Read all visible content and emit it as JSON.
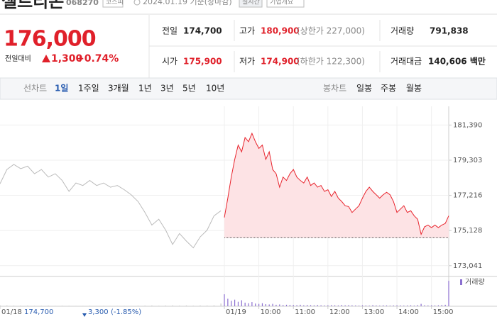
{
  "header": {
    "name": "셀트리온",
    "code": "068270",
    "market": "코스피",
    "date": "2024.01.19 기준(장마감)",
    "realtime": "실시간",
    "company_info": "기업개요"
  },
  "quote": {
    "price": "176,000",
    "change_label": "전일대비",
    "change": "1,300",
    "change_pct": "+0.74%"
  },
  "info": {
    "row1": [
      {
        "label": "전일",
        "value": "174,700"
      },
      {
        "label": "고가",
        "value": "180,900",
        "note": "(상한가 227,000)"
      },
      {
        "label": "거래량",
        "value": "791,838"
      }
    ],
    "row2": [
      {
        "label": "시가",
        "value": "175,900"
      },
      {
        "label": "저가",
        "value": "174,900",
        "note": "(하한가 122,300)"
      },
      {
        "label": "거래대금",
        "value": "140,606 백만"
      }
    ]
  },
  "tabs": {
    "line_label": "선차트",
    "line": [
      "1일",
      "1주일",
      "3개월",
      "1년",
      "3년",
      "5년",
      "10년"
    ],
    "candle_label": "봉차트",
    "candle": [
      "일봉",
      "주봉",
      "월봉"
    ]
  },
  "footer": {
    "prev_close": "174,700",
    "change": "3,300",
    "change_pct": "(-1.85%)"
  },
  "chart_data": {
    "type": "line",
    "ylim": [
      172400,
      182500
    ],
    "yticks": [
      {
        "value": 181390,
        "label": "181,390"
      },
      {
        "value": 179303,
        "label": "179,303"
      },
      {
        "value": 177216,
        "label": "177,216"
      },
      {
        "value": 175128,
        "label": "175,128"
      },
      {
        "value": 173041,
        "label": "173,041"
      }
    ],
    "xlim": [
      0,
      780
    ],
    "xticks": [
      {
        "value": 0,
        "label": "01/18"
      },
      {
        "value": 390,
        "label": "01/19"
      },
      {
        "value": 450,
        "label": "10:00"
      },
      {
        "value": 510,
        "label": "11:00"
      },
      {
        "value": 570,
        "label": "12:00"
      },
      {
        "value": 630,
        "label": "13:00"
      },
      {
        "value": 690,
        "label": "14:00"
      },
      {
        "value": 750,
        "label": "15:00"
      }
    ],
    "grid": true,
    "baseline": 174700,
    "volume_label": "거래량",
    "volume_ylim": [
      0,
      90000
    ],
    "series": [
      {
        "color": "#bbbbbb",
        "volume_color": "#c8c8c8",
        "x": [
          0,
          12,
          24,
          36,
          48,
          60,
          72,
          84,
          96,
          108,
          120,
          132,
          144,
          156,
          168,
          180,
          192,
          204,
          216,
          228,
          240,
          252,
          264,
          276,
          288,
          300,
          312,
          324,
          336,
          348,
          360,
          372,
          384
        ],
        "values": [
          177900,
          178750,
          179050,
          178800,
          178950,
          178500,
          178750,
          178300,
          178500,
          178100,
          177450,
          177950,
          177800,
          178100,
          177800,
          177950,
          177700,
          177800,
          177550,
          177250,
          176850,
          176200,
          175450,
          175800,
          175150,
          174300,
          174950,
          174500,
          174100,
          174750,
          175150,
          176000,
          176300
        ],
        "volume": [
          3000,
          2500,
          2000,
          1800,
          2200,
          1500,
          1600,
          2000,
          1400,
          1800,
          1500,
          1200,
          1300,
          1600,
          1200,
          1400,
          1100,
          1300,
          1500,
          1200,
          1800,
          2000,
          2500,
          1600,
          2200,
          2800,
          2000,
          2400,
          1800,
          2600,
          2200,
          3000,
          9000
        ]
      },
      {
        "color": "#e8242d",
        "fill": "#fde3e5",
        "volume_color": "#8b6fd0",
        "x": [
          390,
          396,
          402,
          408,
          414,
          420,
          426,
          432,
          438,
          444,
          450,
          456,
          462,
          468,
          474,
          480,
          486,
          492,
          498,
          504,
          510,
          516,
          522,
          528,
          534,
          540,
          546,
          552,
          558,
          564,
          570,
          576,
          582,
          588,
          594,
          600,
          606,
          612,
          618,
          624,
          630,
          636,
          642,
          648,
          654,
          660,
          666,
          672,
          678,
          684,
          690,
          696,
          702,
          708,
          714,
          720,
          726,
          732,
          738,
          744,
          750,
          756,
          762,
          768,
          774,
          780
        ],
        "values": [
          175900,
          177050,
          178300,
          179350,
          180200,
          179800,
          180650,
          180400,
          180900,
          180400,
          180000,
          180200,
          179350,
          179800,
          178750,
          178500,
          177700,
          178300,
          178100,
          178500,
          178750,
          178300,
          178100,
          177950,
          178300,
          177800,
          177950,
          177700,
          177800,
          177450,
          177550,
          177150,
          177450,
          177050,
          176850,
          176600,
          176550,
          176200,
          176400,
          176600,
          177050,
          177450,
          177700,
          177450,
          177250,
          177050,
          177250,
          177400,
          177250,
          176850,
          176200,
          176400,
          176600,
          176200,
          176300,
          176000,
          175800,
          174900,
          175350,
          175450,
          175300,
          175450,
          175300,
          175450,
          175550,
          176000
        ],
        "volume": [
          40000,
          25000,
          18000,
          22000,
          15000,
          20000,
          12000,
          10000,
          14000,
          9000,
          8000,
          10000,
          7000,
          6000,
          8000,
          5000,
          6000,
          4000,
          5000,
          4500,
          4000,
          3500,
          5000,
          3000,
          4000,
          3500,
          3000,
          4000,
          3000,
          2500,
          3000,
          3500,
          3000,
          2500,
          4000,
          3000,
          3500,
          3000,
          2500,
          2000,
          3000,
          2500,
          2000,
          3500,
          2500,
          2000,
          3000,
          2500,
          2000,
          2500,
          3000,
          2500,
          2000,
          2500,
          3000,
          2000,
          3500,
          8000,
          3000,
          2500,
          3000,
          2500,
          3000,
          4000,
          5000,
          85000
        ]
      }
    ]
  }
}
